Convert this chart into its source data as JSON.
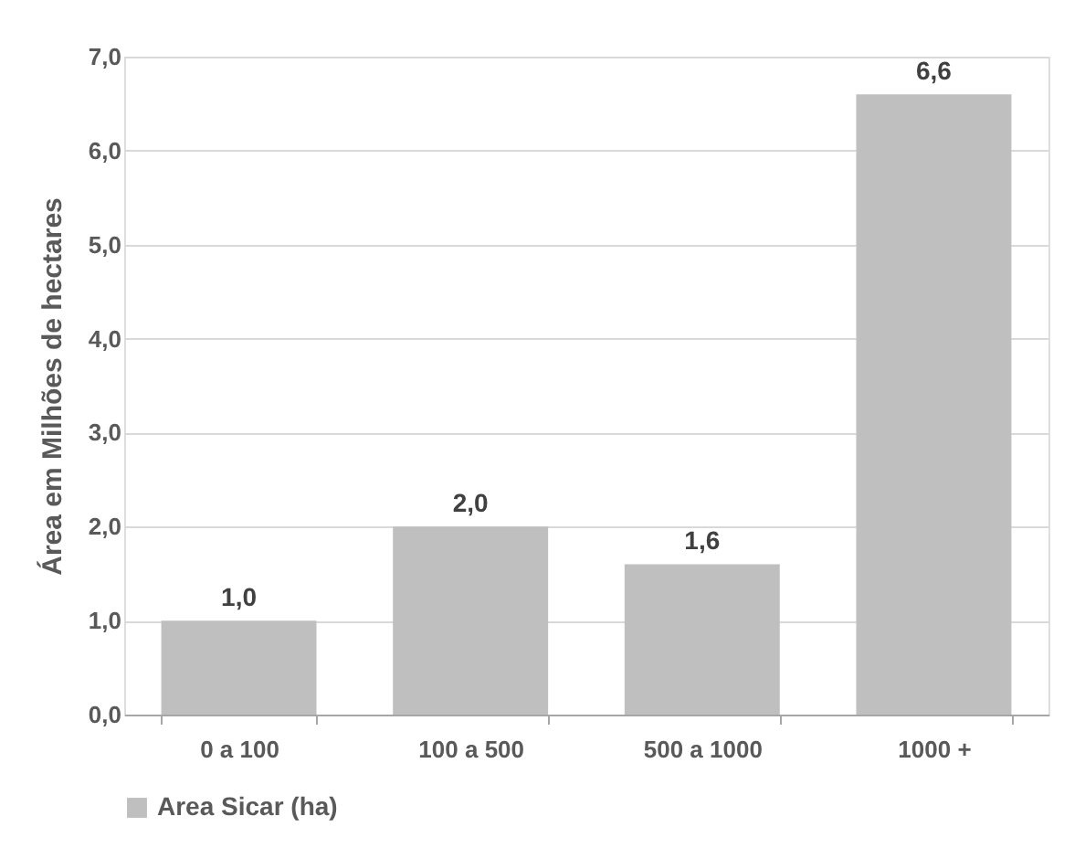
{
  "chart_data": {
    "type": "bar",
    "ylabel": "Área em Milhões de hectares",
    "categories": [
      "0 a 100",
      "100 a 500",
      "500 a 1000",
      "1000 +"
    ],
    "series": [
      {
        "name": "Area Sicar (ha)",
        "color": "#bfbfbf",
        "values": [
          1.0,
          2.0,
          1.6,
          6.6
        ],
        "value_labels": [
          "1,0",
          "2,0",
          "1,6",
          "6,6"
        ]
      }
    ],
    "ylim": [
      0,
      7
    ],
    "yticks": [
      {
        "value": 0,
        "label": "0,0"
      },
      {
        "value": 1,
        "label": "1,0"
      },
      {
        "value": 2,
        "label": "2,0"
      },
      {
        "value": 3,
        "label": "3,0"
      },
      {
        "value": 4,
        "label": "4,0"
      },
      {
        "value": 5,
        "label": "5,0"
      },
      {
        "value": 6,
        "label": "6,0"
      },
      {
        "value": 7,
        "label": "7,0"
      }
    ],
    "grid": "y",
    "legend": "bottom"
  }
}
